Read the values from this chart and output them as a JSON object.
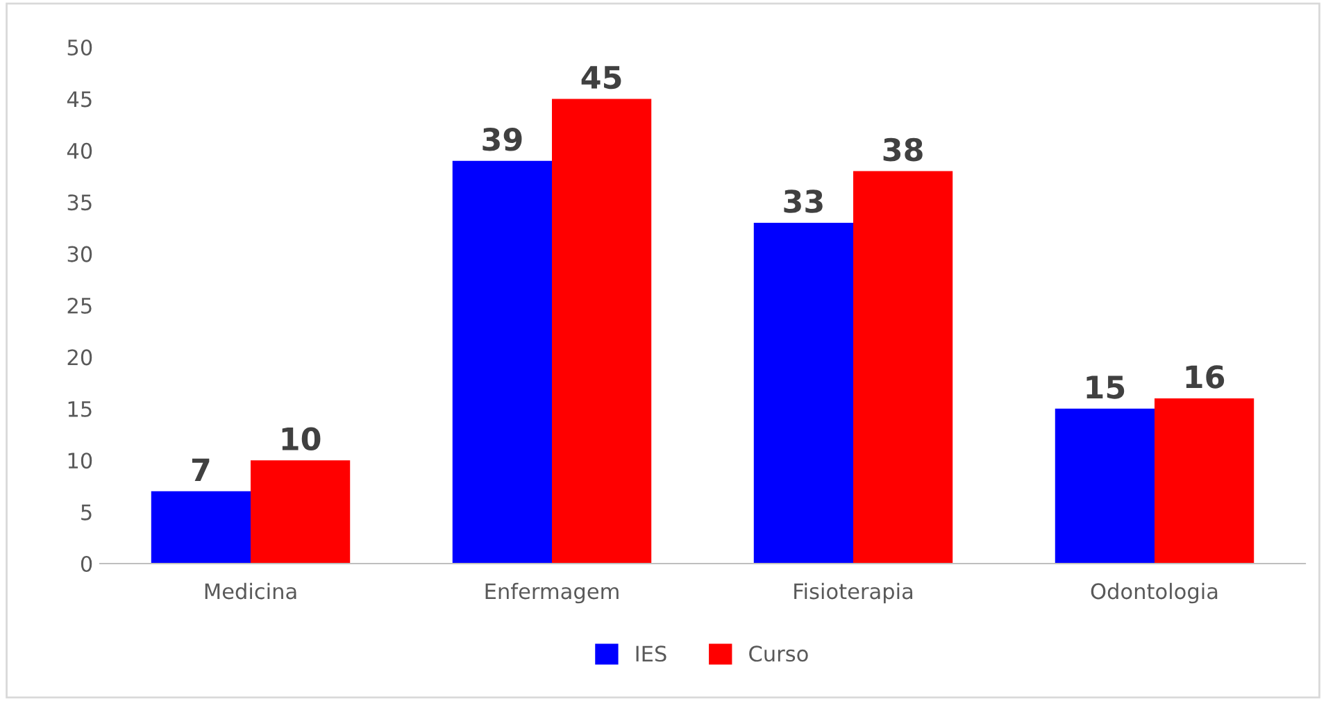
{
  "chart_data": {
    "type": "bar",
    "categories": [
      "Medicina",
      "Enfermagem",
      "Fisioterapia",
      "Odontologia"
    ],
    "series": [
      {
        "name": "IES",
        "color": "#0000ff",
        "values": [
          7,
          39,
          33,
          15
        ]
      },
      {
        "name": "Curso",
        "color": "#ff0000",
        "values": [
          10,
          45,
          38,
          16
        ]
      }
    ],
    "ylim": [
      0,
      50
    ],
    "yticks": [
      0,
      5,
      10,
      15,
      20,
      25,
      30,
      35,
      40,
      45,
      50
    ],
    "grid": false,
    "legend": "bottom",
    "data_labels": true
  }
}
